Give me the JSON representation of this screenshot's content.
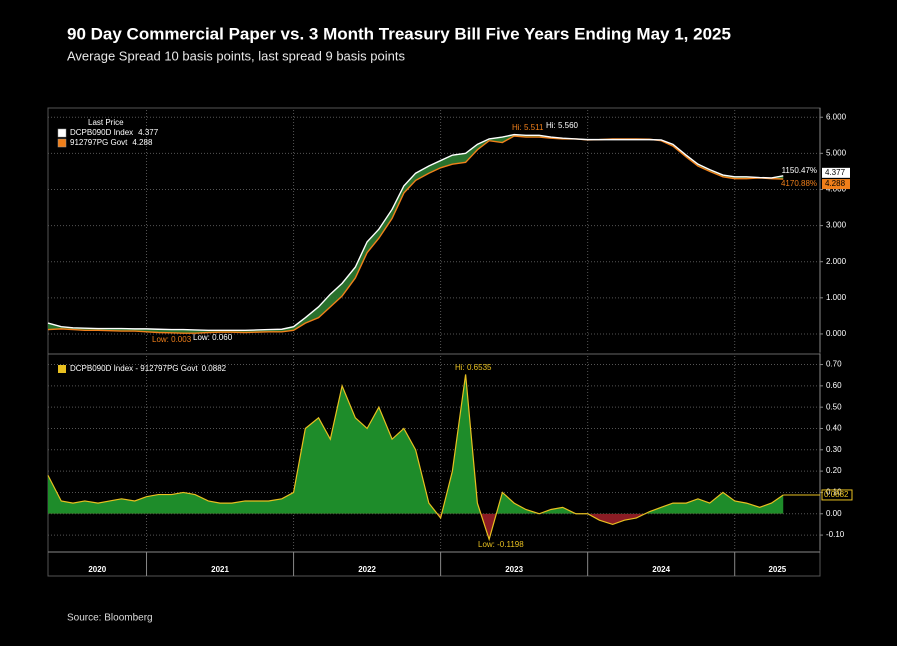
{
  "title": "90 Day Commercial Paper vs. 3 Month Treasury Bill Five Years Ending May 1, 2025",
  "subtitle": "Average Spread 10 basis points, last spread 9 basis points",
  "source": "Source:  Bloomberg",
  "chart_data": [
    {
      "type": "line",
      "legend_title": "Last Price",
      "x": [
        2020.33,
        2020.42,
        2020.5,
        2020.58,
        2020.67,
        2020.75,
        2020.83,
        2020.92,
        2021.0,
        2021.08,
        2021.17,
        2021.25,
        2021.33,
        2021.42,
        2021.5,
        2021.58,
        2021.67,
        2021.75,
        2021.83,
        2021.92,
        2022.0,
        2022.08,
        2022.17,
        2022.25,
        2022.33,
        2022.42,
        2022.5,
        2022.58,
        2022.67,
        2022.75,
        2022.83,
        2022.92,
        2023.0,
        2023.08,
        2023.17,
        2023.25,
        2023.33,
        2023.42,
        2023.5,
        2023.58,
        2023.67,
        2023.75,
        2023.83,
        2023.92,
        2024.0,
        2024.08,
        2024.17,
        2024.25,
        2024.33,
        2024.42,
        2024.5,
        2024.58,
        2024.67,
        2024.75,
        2024.83,
        2024.92,
        2025.0,
        2025.08,
        2025.17,
        2025.25,
        2025.33
      ],
      "series": [
        {
          "name": "DCPB090D Index",
          "color": "#ffffff",
          "values": [
            0.3,
            0.2,
            0.17,
            0.16,
            0.15,
            0.15,
            0.15,
            0.14,
            0.14,
            0.13,
            0.12,
            0.12,
            0.11,
            0.1,
            0.1,
            0.1,
            0.1,
            0.11,
            0.12,
            0.13,
            0.2,
            0.45,
            0.75,
            1.1,
            1.4,
            1.85,
            2.55,
            2.9,
            3.45,
            4.1,
            4.45,
            4.65,
            4.8,
            4.95,
            5.0,
            5.25,
            5.4,
            5.45,
            5.52,
            5.5,
            5.5,
            5.45,
            5.42,
            5.4,
            5.38,
            5.38,
            5.38,
            5.38,
            5.38,
            5.38,
            5.37,
            5.25,
            4.95,
            4.7,
            4.55,
            4.4,
            4.35,
            4.35,
            4.33,
            4.32,
            4.377
          ]
        },
        {
          "name": "912797PG Govt",
          "color": "#f07f1a",
          "values": [
            0.12,
            0.14,
            0.12,
            0.1,
            0.1,
            0.09,
            0.08,
            0.08,
            0.06,
            0.04,
            0.03,
            0.02,
            0.02,
            0.04,
            0.05,
            0.05,
            0.04,
            0.05,
            0.06,
            0.06,
            0.1,
            0.3,
            0.45,
            0.75,
            1.05,
            1.55,
            2.25,
            2.65,
            3.2,
            3.9,
            4.25,
            4.45,
            4.6,
            4.7,
            4.75,
            5.1,
            5.35,
            5.3,
            5.48,
            5.45,
            5.45,
            5.42,
            5.4,
            5.4,
            5.37,
            5.38,
            5.4,
            5.4,
            5.4,
            5.39,
            5.35,
            5.2,
            4.9,
            4.65,
            4.5,
            4.35,
            4.3,
            4.3,
            4.32,
            4.3,
            4.288
          ]
        }
      ],
      "fill_color": "#2e7d32",
      "xlim": [
        2020.33,
        2025.58
      ],
      "xticks": [
        2021,
        2022,
        2023,
        2024,
        2025
      ],
      "x_labels": [
        2020,
        2021,
        2022,
        2023,
        2024,
        2025
      ],
      "ylim": [
        -0.5,
        6.2
      ],
      "yticks": [
        {
          "value": 0,
          "label": "0.000"
        },
        {
          "value": 1,
          "label": "1.000"
        },
        {
          "value": 2,
          "label": "2.000"
        },
        {
          "value": 3,
          "label": "3.000"
        },
        {
          "value": 4,
          "label": "4.000"
        },
        {
          "value": 5,
          "label": "5.000"
        },
        {
          "value": 6,
          "label": "6.000"
        }
      ],
      "grid": true,
      "annotations": [
        {
          "text": "Hi: 5.511",
          "color": "#f07f1a"
        },
        {
          "text": "Hi: 5.560",
          "color": "#ffffff"
        },
        {
          "text": "Low: 0.003",
          "color": "#f07f1a"
        },
        {
          "text": "Low: 0.060",
          "color": "#ffffff"
        },
        {
          "text": "1150.47%",
          "color": "#ffffff"
        },
        {
          "text": "4170.88%",
          "color": "#f07f1a"
        }
      ]
    },
    {
      "type": "area",
      "x": [
        2020.33,
        2020.42,
        2020.5,
        2020.58,
        2020.67,
        2020.75,
        2020.83,
        2020.92,
        2021.0,
        2021.08,
        2021.17,
        2021.25,
        2021.33,
        2021.42,
        2021.5,
        2021.58,
        2021.67,
        2021.75,
        2021.83,
        2021.92,
        2022.0,
        2022.08,
        2022.17,
        2022.25,
        2022.33,
        2022.42,
        2022.5,
        2022.58,
        2022.67,
        2022.75,
        2022.83,
        2022.92,
        2023.0,
        2023.08,
        2023.17,
        2023.25,
        2023.33,
        2023.42,
        2023.5,
        2023.58,
        2023.67,
        2023.75,
        2023.83,
        2023.92,
        2024.0,
        2024.08,
        2024.17,
        2024.25,
        2024.33,
        2024.42,
        2024.5,
        2024.58,
        2024.67,
        2024.75,
        2024.83,
        2024.92,
        2025.0,
        2025.08,
        2025.17,
        2025.25,
        2025.33
      ],
      "series": [
        {
          "name": "DCPB090D Index - 912797PG Govt",
          "color": "#e8c020",
          "positive_color": "#1e8c2a",
          "negative_color": "#8b1c24",
          "values": [
            0.18,
            0.06,
            0.05,
            0.06,
            0.05,
            0.06,
            0.07,
            0.06,
            0.08,
            0.09,
            0.09,
            0.1,
            0.09,
            0.06,
            0.05,
            0.05,
            0.06,
            0.06,
            0.06,
            0.07,
            0.1,
            0.4,
            0.45,
            0.35,
            0.6,
            0.45,
            0.4,
            0.5,
            0.35,
            0.4,
            0.3,
            0.05,
            -0.02,
            0.2,
            0.6535,
            0.05,
            -0.1198,
            0.1,
            0.05,
            0.02,
            0.0,
            0.02,
            0.03,
            0.0,
            0.0,
            -0.03,
            -0.05,
            -0.03,
            -0.02,
            0.01,
            0.03,
            0.05,
            0.05,
            0.07,
            0.05,
            0.1,
            0.06,
            0.05,
            0.03,
            0.05,
            0.0882
          ]
        }
      ],
      "xlim": [
        2020.33,
        2025.58
      ],
      "xticks": [
        2021,
        2022,
        2023,
        2024,
        2025
      ],
      "ylim": [
        -0.17,
        0.74
      ],
      "yticks": [
        {
          "value": -0.1,
          "label": "-0.10"
        },
        {
          "value": 0,
          "label": "0.00"
        },
        {
          "value": 0.1,
          "label": "0.10"
        },
        {
          "value": 0.2,
          "label": "0.20"
        },
        {
          "value": 0.3,
          "label": "0.30"
        },
        {
          "value": 0.4,
          "label": "0.40"
        },
        {
          "value": 0.5,
          "label": "0.50"
        },
        {
          "value": 0.6,
          "label": "0.60"
        },
        {
          "value": 0.7,
          "label": "0.70"
        }
      ],
      "grid": true,
      "annotations": [
        {
          "text": "Hi: 0.6535",
          "color": "#e8c020"
        },
        {
          "text": "Low: -0.1198",
          "color": "#e8c020"
        }
      ]
    }
  ]
}
